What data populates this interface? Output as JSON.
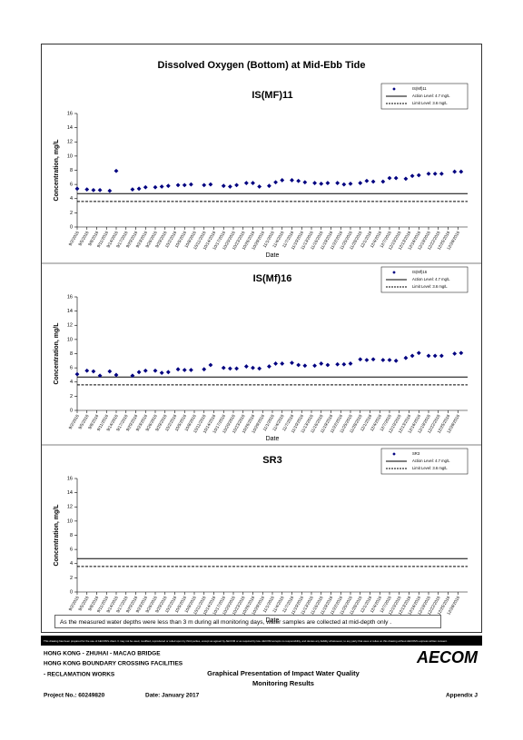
{
  "document": {
    "title": "Dissolved Oxygen (Bottom) at Mid-Ebb Tide",
    "note": "As the measured water depths were less than 3 m during all monitoring days, water samples are collected  at mid-depth only .",
    "disclaimer": "This drawing has been prepared for the use of AECOM's client. It may not be used, modified, reproduced or relied upon by third parties, except as agreed by AECOM or as required by law. AECOM accepts no responsibility, and denies any liability whatsoever, to any party that uses or relies on this drawing without AECOM's express written consent.",
    "project_lines": [
      "HONG KONG - ZHUHAI - MACAO BRIDGE",
      "HONG KONG BOUNDARY CROSSING FACILITIES",
      "- RECLAMATION WORKS"
    ],
    "drawing_title": [
      "Graphical Presentation of Impact Water Quality",
      "Monitoring Results"
    ],
    "logo": "AECOM",
    "project_no": "Project No.: 60249820",
    "date": "Date: January 2017",
    "appendix": "Appendix J"
  },
  "chart_data": [
    {
      "type": "scatter",
      "title": "IS(MF)11",
      "xlabel": "Date",
      "ylabel": "Concentration, mg/L",
      "legend": "upper right",
      "x": [
        "9/2/2016",
        "9/5/2016",
        "9/7/2016",
        "9/9/2016",
        "9/12/2016",
        "9/14/2016",
        "9/19/2016",
        "9/21/2016",
        "9/23/2016",
        "9/26/2016",
        "9/28/2016",
        "9/30/2016",
        "10/3/2016",
        "10/5/2016",
        "10/7/2016",
        "10/11/2016",
        "10/13/2016",
        "10/17/2016",
        "10/19/2016",
        "10/21/2016",
        "10/24/2016",
        "10/26/2016",
        "10/28/2016",
        "10/31/2016",
        "11/2/2016",
        "11/4/2016",
        "11/7/2016",
        "11/9/2016",
        "11/11/2016",
        "11/14/2016",
        "11/16/2016",
        "11/18/2016",
        "11/21/2016",
        "11/23/2016",
        "11/25/2016",
        "11/28/2016",
        "11/30/2016",
        "12/2/2016",
        "12/5/2016",
        "12/7/2016",
        "12/9/2016",
        "12/12/2016",
        "12/14/2016",
        "12/16/2016",
        "12/19/2016",
        "12/21/2016",
        "12/23/2016",
        "12/27/2016",
        "12/29/2016"
      ],
      "series": [
        {
          "name": "IS(Mf)11",
          "color": "#000080",
          "values": [
            5.4,
            5.3,
            5.2,
            5.2,
            5.1,
            7.9,
            5.3,
            5.4,
            5.6,
            5.6,
            5.7,
            5.8,
            5.9,
            5.9,
            6.0,
            5.9,
            6.0,
            5.8,
            5.7,
            5.9,
            6.2,
            6.2,
            5.7,
            5.8,
            6.3,
            6.6,
            6.6,
            6.5,
            6.3,
            6.2,
            6.1,
            6.2,
            6.2,
            6.0,
            6.1,
            6.2,
            6.5,
            6.4,
            6.4,
            6.9,
            6.9,
            6.8,
            7.2,
            7.3,
            7.5,
            7.5,
            7.5,
            7.8,
            7.8
          ]
        }
      ],
      "reference_lines": [
        {
          "name": "Action Level: 4.7 mg/L",
          "value": 4.7,
          "style": "solid",
          "color": "#000000"
        },
        {
          "name": "Limit Level: 3.6 mg/L",
          "value": 3.6,
          "style": "dashed",
          "color": "#000000"
        }
      ],
      "xlim": [
        "9/2/2016",
        "12/31/2016"
      ],
      "xticks": [
        "9/2/2016",
        "9/5/2016",
        "9/8/2016",
        "9/11/2016",
        "9/14/2016",
        "9/17/2016",
        "9/20/2016",
        "9/23/2016",
        "9/26/2016",
        "9/29/2016",
        "10/2/2016",
        "10/5/2016",
        "10/8/2016",
        "10/11/2016",
        "10/14/2016",
        "10/17/2016",
        "10/20/2016",
        "10/23/2016",
        "10/26/2016",
        "10/29/2016",
        "11/1/2016",
        "11/4/2016",
        "11/7/2016",
        "11/10/2016",
        "11/13/2016",
        "11/16/2016",
        "11/19/2016",
        "11/22/2016",
        "11/25/2016",
        "11/28/2016",
        "12/1/2016",
        "12/4/2016",
        "12/7/2016",
        "12/10/2016",
        "12/13/2016",
        "12/16/2016",
        "12/19/2016",
        "12/22/2016",
        "12/25/2016",
        "12/28/2016"
      ],
      "ylim": [
        0,
        16
      ],
      "yticks": [
        0,
        2,
        4,
        6,
        8,
        10,
        12,
        14,
        16
      ]
    },
    {
      "type": "scatter",
      "title": "IS(Mf)16",
      "xlabel": "Date",
      "ylabel": "Concentration, mg/L",
      "legend": "upper right",
      "x": [
        "9/2/2016",
        "9/5/2016",
        "9/7/2016",
        "9/9/2016",
        "9/12/2016",
        "9/14/2016",
        "9/19/2016",
        "9/21/2016",
        "9/23/2016",
        "9/26/2016",
        "9/28/2016",
        "9/30/2016",
        "10/3/2016",
        "10/5/2016",
        "10/7/2016",
        "10/11/2016",
        "10/13/2016",
        "10/17/2016",
        "10/19/2016",
        "10/21/2016",
        "10/24/2016",
        "10/26/2016",
        "10/28/2016",
        "10/31/2016",
        "11/2/2016",
        "11/4/2016",
        "11/7/2016",
        "11/9/2016",
        "11/11/2016",
        "11/14/2016",
        "11/16/2016",
        "11/18/2016",
        "11/21/2016",
        "11/23/2016",
        "11/25/2016",
        "11/28/2016",
        "11/30/2016",
        "12/2/2016",
        "12/5/2016",
        "12/7/2016",
        "12/9/2016",
        "12/12/2016",
        "12/14/2016",
        "12/16/2016",
        "12/19/2016",
        "12/21/2016",
        "12/23/2016",
        "12/27/2016",
        "12/29/2016"
      ],
      "series": [
        {
          "name": "IS(Mf)16",
          "color": "#000080",
          "values": [
            5.1,
            5.6,
            5.5,
            4.9,
            5.5,
            5.0,
            4.9,
            5.4,
            5.6,
            5.6,
            5.3,
            5.4,
            5.8,
            5.7,
            5.7,
            5.8,
            6.4,
            6.0,
            5.9,
            5.9,
            6.2,
            6.0,
            5.9,
            6.2,
            6.6,
            6.6,
            6.7,
            6.4,
            6.3,
            6.3,
            6.6,
            6.4,
            6.5,
            6.5,
            6.6,
            7.2,
            7.1,
            7.2,
            7.1,
            7.1,
            7.0,
            7.4,
            7.7,
            8.1,
            7.7,
            7.7,
            7.7,
            8.0,
            8.1
          ]
        }
      ],
      "reference_lines": [
        {
          "name": "Action Level: 4.7 mg/L",
          "value": 4.7,
          "style": "solid",
          "color": "#000000"
        },
        {
          "name": "Limit Level: 3.6 mg/L",
          "value": 3.6,
          "style": "dashed",
          "color": "#000000"
        }
      ],
      "xlim": [
        "9/2/2016",
        "12/31/2016"
      ],
      "xticks": [
        "9/2/2016",
        "9/5/2016",
        "9/8/2016",
        "9/11/2016",
        "9/14/2016",
        "9/17/2016",
        "9/20/2016",
        "9/23/2016",
        "9/26/2016",
        "9/29/2016",
        "10/2/2016",
        "10/5/2016",
        "10/8/2016",
        "10/11/2016",
        "10/14/2016",
        "10/17/2016",
        "10/20/2016",
        "10/23/2016",
        "10/26/2016",
        "10/29/2016",
        "11/1/2016",
        "11/4/2016",
        "11/7/2016",
        "11/10/2016",
        "11/13/2016",
        "11/16/2016",
        "11/19/2016",
        "11/22/2016",
        "11/25/2016",
        "11/28/2016",
        "12/1/2016",
        "12/4/2016",
        "12/7/2016",
        "12/10/2016",
        "12/13/2016",
        "12/16/2016",
        "12/19/2016",
        "12/22/2016",
        "12/25/2016",
        "12/28/2016"
      ],
      "ylim": [
        0,
        16
      ],
      "yticks": [
        0,
        2,
        4,
        6,
        8,
        10,
        12,
        14,
        16
      ]
    },
    {
      "type": "scatter",
      "title": "SR3",
      "xlabel": "Date",
      "ylabel": "Concentration, mg/L",
      "legend": "upper right",
      "x": [],
      "series": [
        {
          "name": "SR3",
          "color": "#000080",
          "values": []
        }
      ],
      "reference_lines": [
        {
          "name": "Action Level: 4.7 mg/L",
          "value": 4.7,
          "style": "solid",
          "color": "#000000"
        },
        {
          "name": "Limit Level: 3.6 mg/L",
          "value": 3.6,
          "style": "dashed",
          "color": "#000000"
        }
      ],
      "xlim": [
        "9/2/2016",
        "12/31/2016"
      ],
      "xticks": [
        "9/2/2016",
        "9/5/2016",
        "9/8/2016",
        "9/11/2016",
        "9/14/2016",
        "9/17/2016",
        "9/20/2016",
        "9/23/2016",
        "9/26/2016",
        "9/29/2016",
        "10/2/2016",
        "10/5/2016",
        "10/8/2016",
        "10/11/2016",
        "10/14/2016",
        "10/17/2016",
        "10/20/2016",
        "10/23/2016",
        "10/26/2016",
        "10/29/2016",
        "11/1/2016",
        "11/4/2016",
        "11/7/2016",
        "11/10/2016",
        "11/13/2016",
        "11/16/2016",
        "11/19/2016",
        "11/22/2016",
        "11/25/2016",
        "11/28/2016",
        "12/1/2016",
        "12/4/2016",
        "12/7/2016",
        "12/10/2016",
        "12/13/2016",
        "12/16/2016",
        "12/19/2016",
        "12/22/2016",
        "12/25/2016",
        "12/28/2016"
      ],
      "ylim": [
        0,
        16
      ],
      "yticks": [
        0,
        2,
        4,
        6,
        8,
        10,
        12,
        14,
        16
      ]
    }
  ]
}
